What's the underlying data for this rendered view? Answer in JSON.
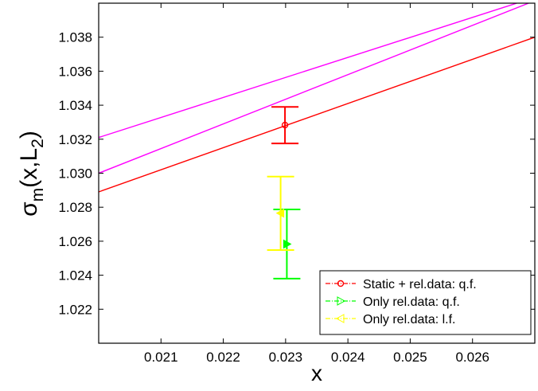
{
  "chart_data": {
    "type": "line",
    "title": "",
    "xlabel": "x",
    "ylabel": {
      "base": "σ",
      "subscript": "m",
      "args_open": "(x,L",
      "args_subscript": "2",
      "args_close": ")"
    },
    "xlim": [
      0.02,
      0.027
    ],
    "ylim": [
      1.02,
      1.04
    ],
    "xticks": [
      0.021,
      0.022,
      0.023,
      0.024,
      0.025,
      0.026
    ],
    "xtick_labels": [
      "0.021",
      "0.022",
      "0.023",
      "0.024",
      "0.025",
      "0.026"
    ],
    "yticks": [
      1.022,
      1.024,
      1.026,
      1.028,
      1.03,
      1.032,
      1.034,
      1.036,
      1.038
    ],
    "ytick_labels": [
      "1.022",
      "1.024",
      "1.026",
      "1.028",
      "1.030",
      "1.032",
      "1.034",
      "1.036",
      "1.038"
    ],
    "grid": false,
    "legend_position": "bottom-right",
    "lines": [
      {
        "color": "#ff00ff",
        "x": [
          0.02,
          0.02671
        ],
        "y": [
          1.0321,
          1.04
        ]
      },
      {
        "color": "#ff00ff",
        "x": [
          0.02,
          0.0269
        ],
        "y": [
          1.03,
          1.04
        ]
      },
      {
        "color": "#ff0000",
        "x": [
          0.02,
          0.027
        ],
        "y": [
          1.0289,
          1.038
        ]
      }
    ],
    "series": [
      {
        "name": "Static + rel.data: q.f.",
        "color": "#ff0000",
        "marker": "circle",
        "x": 0.02299,
        "y": 1.03283,
        "y_low": 1.03175,
        "y_high": 1.0339
      },
      {
        "name": "Only rel.data: q.f.",
        "color": "#00ff00",
        "marker": "triangle-right",
        "x": 0.02302,
        "y": 1.02583,
        "y_low": 1.0238,
        "y_high": 1.02787
      },
      {
        "name": "Only rel.data: l.f.",
        "color": "#ffff00",
        "marker": "triangle-left",
        "x": 0.02292,
        "y": 1.02765,
        "y_low": 1.02548,
        "y_high": 1.0298
      }
    ]
  }
}
